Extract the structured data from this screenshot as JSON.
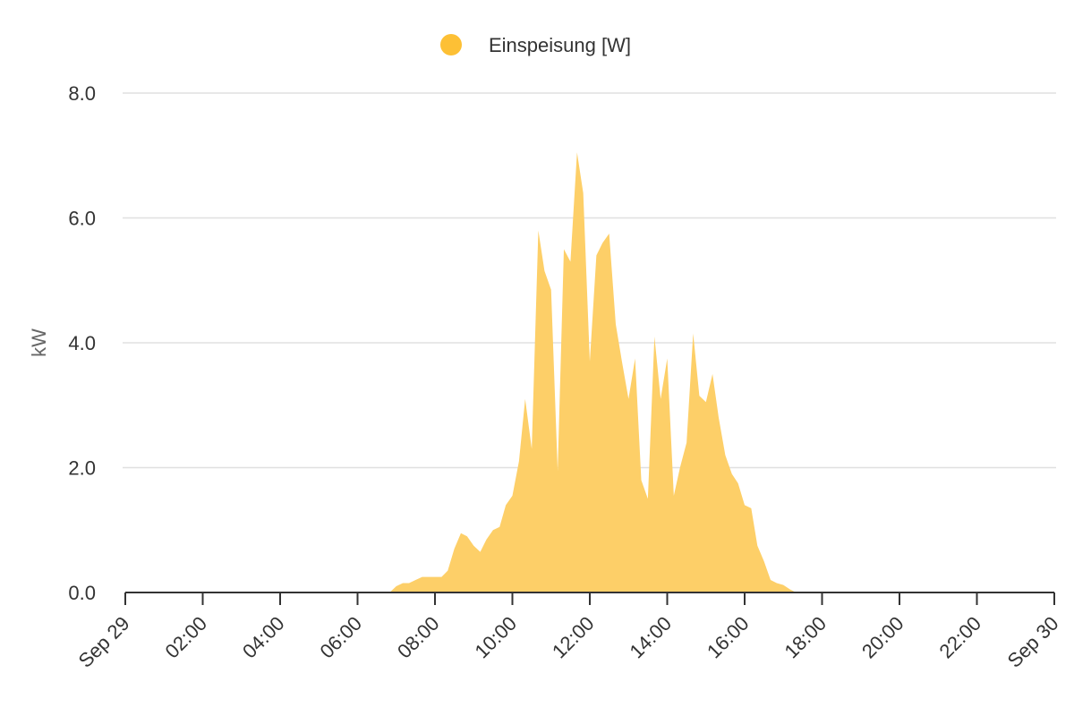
{
  "chart_data": {
    "type": "area",
    "title": "",
    "ylabel": "kW",
    "xlabel": "",
    "ylim": [
      0,
      8
    ],
    "yticks": [
      0,
      2,
      4,
      6,
      8
    ],
    "ytick_labels": [
      "0.0",
      "2.0",
      "4.0",
      "6.0",
      "8.0"
    ],
    "xlim": [
      0,
      24
    ],
    "xticks": [
      0,
      2,
      4,
      6,
      8,
      10,
      12,
      14,
      16,
      18,
      20,
      22,
      24
    ],
    "xtick_labels": [
      "Sep 29",
      "02:00",
      "04:00",
      "06:00",
      "08:00",
      "10:00",
      "12:00",
      "14:00",
      "16:00",
      "18:00",
      "20:00",
      "22:00",
      "Sep 30"
    ],
    "grid": true,
    "legend_position": "top-center",
    "colors": {
      "series": "#fdcf68",
      "legend_marker": "#fdc035"
    },
    "series": [
      {
        "name": "Einspeisung [W]",
        "x": [
          6.83,
          7.0,
          7.17,
          7.33,
          7.5,
          7.67,
          7.83,
          8.0,
          8.17,
          8.33,
          8.5,
          8.67,
          8.83,
          9.0,
          9.17,
          9.33,
          9.5,
          9.67,
          9.83,
          10.0,
          10.17,
          10.33,
          10.5,
          10.67,
          10.83,
          11.0,
          11.17,
          11.33,
          11.5,
          11.67,
          11.83,
          12.0,
          12.17,
          12.33,
          12.5,
          12.67,
          12.83,
          13.0,
          13.17,
          13.33,
          13.5,
          13.67,
          13.83,
          14.0,
          14.17,
          14.33,
          14.5,
          14.67,
          14.83,
          15.0,
          15.17,
          15.33,
          15.5,
          15.67,
          15.83,
          16.0,
          16.17,
          16.33,
          16.5,
          16.67,
          16.83,
          17.0,
          17.17,
          17.33,
          17.5
        ],
        "values": [
          0.0,
          0.1,
          0.15,
          0.15,
          0.2,
          0.25,
          0.25,
          0.25,
          0.25,
          0.35,
          0.7,
          0.95,
          0.9,
          0.75,
          0.65,
          0.85,
          1.0,
          1.05,
          1.4,
          1.55,
          2.1,
          3.1,
          2.3,
          5.8,
          5.15,
          4.85,
          1.95,
          5.5,
          5.3,
          7.05,
          6.4,
          3.7,
          5.4,
          5.6,
          5.75,
          4.3,
          3.7,
          3.1,
          3.75,
          1.8,
          1.5,
          4.1,
          3.1,
          3.75,
          1.55,
          2.0,
          2.4,
          4.15,
          3.15,
          3.05,
          3.5,
          2.8,
          2.2,
          1.9,
          1.75,
          1.4,
          1.35,
          0.75,
          0.5,
          0.2,
          0.15,
          0.12,
          0.05,
          0.0,
          0.0
        ]
      }
    ]
  }
}
